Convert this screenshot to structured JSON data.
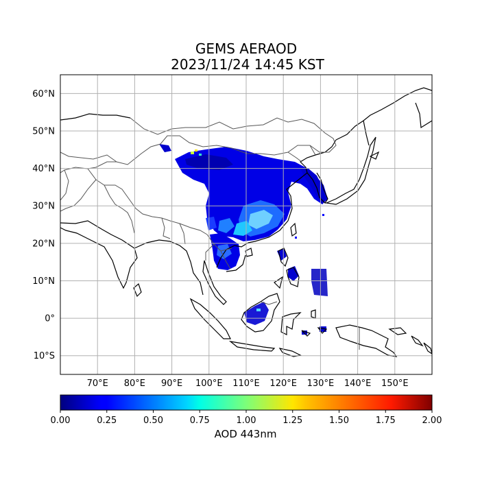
{
  "map": {
    "title": "GEMS AERAOD",
    "subtitle": "2023/11/24 14:45 KST",
    "lon_range": [
      60,
      160
    ],
    "lat_range": [
      -15,
      65
    ],
    "lon_ticks": [
      "70°E",
      "80°E",
      "90°E",
      "100°E",
      "110°E",
      "120°E",
      "130°E",
      "140°E",
      "150°E"
    ],
    "lat_ticks": [
      "60°N",
      "50°N",
      "40°N",
      "30°N",
      "20°N",
      "10°N",
      "0°",
      "10°S"
    ],
    "gridlines": true
  },
  "colorbar": {
    "label": "AOD 443nm",
    "range": [
      0.0,
      2.0
    ],
    "colormap": "jet",
    "ticks": [
      "0.00",
      "0.25",
      "0.50",
      "0.75",
      "1.00",
      "1.25",
      "1.50",
      "1.75",
      "2.00"
    ]
  }
}
